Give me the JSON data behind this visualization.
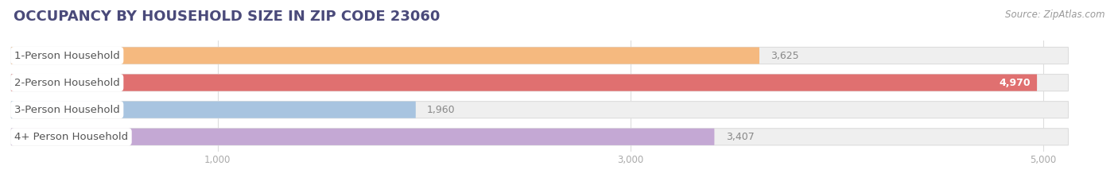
{
  "title": "OCCUPANCY BY HOUSEHOLD SIZE IN ZIP CODE 23060",
  "source": "Source: ZipAtlas.com",
  "categories": [
    "1-Person Household",
    "2-Person Household",
    "3-Person Household",
    "4+ Person Household"
  ],
  "values": [
    3625,
    4970,
    1960,
    3407
  ],
  "bar_colors": [
    "#F5B97F",
    "#E07070",
    "#A8C4E0",
    "#C4A8D4"
  ],
  "value_text_colors": [
    "#888888",
    "#FFFFFF",
    "#888888",
    "#888888"
  ],
  "xlim_max": 5200,
  "xticks": [
    1000,
    3000,
    5000
  ],
  "bar_height": 0.62,
  "background_color": "#FFFFFF",
  "bar_bg_color": "#EFEFEF",
  "title_fontsize": 13,
  "label_fontsize": 9.5,
  "value_fontsize": 9,
  "source_fontsize": 8.5,
  "title_color": "#4A4A7A",
  "label_text_color": "#555555",
  "source_color": "#999999",
  "tick_color": "#AAAAAA"
}
